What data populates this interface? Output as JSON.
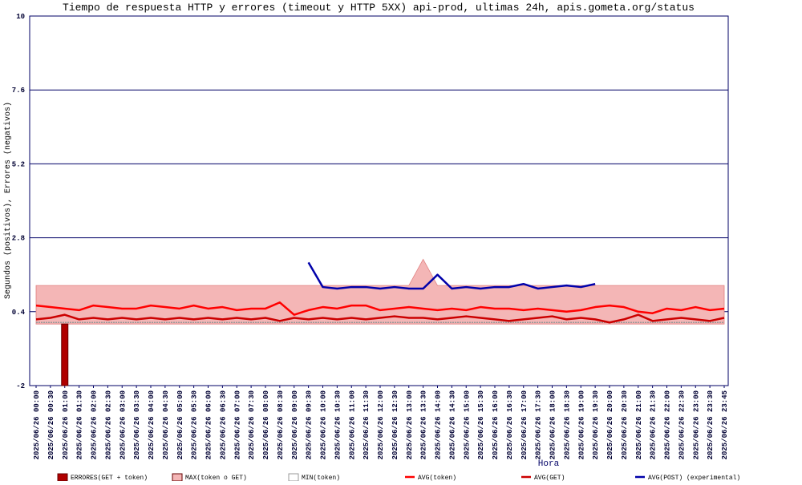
{
  "chart_data": {
    "type": "line",
    "title": "Tiempo de respuesta HTTP y errores (timeout y HTTP 5XX) api-prod, ultimas 24h, apis.gometa.org/status",
    "ylabel": "Segundos (positivos), Errores (negativos)",
    "xlabel": "Hora",
    "categories": [
      "2025/06/26 00:00",
      "2025/06/26 00:30",
      "2025/06/26 01:00",
      "2025/06/26 01:30",
      "2025/06/26 02:00",
      "2025/06/26 02:30",
      "2025/06/26 03:00",
      "2025/06/26 03:30",
      "2025/06/26 04:00",
      "2025/06/26 04:30",
      "2025/06/26 05:00",
      "2025/06/26 05:30",
      "2025/06/26 06:00",
      "2025/06/26 06:30",
      "2025/06/26 07:00",
      "2025/06/26 07:30",
      "2025/06/26 08:00",
      "2025/06/26 08:30",
      "2025/06/26 09:00",
      "2025/06/26 09:30",
      "2025/06/26 10:00",
      "2025/06/26 10:30",
      "2025/06/26 11:00",
      "2025/06/26 11:30",
      "2025/06/26 12:00",
      "2025/06/26 12:30",
      "2025/06/26 13:00",
      "2025/06/26 13:30",
      "2025/06/26 14:00",
      "2025/06/26 14:30",
      "2025/06/26 15:00",
      "2025/06/26 15:30",
      "2025/06/26 16:00",
      "2025/06/26 16:30",
      "2025/06/26 17:00",
      "2025/06/26 17:30",
      "2025/06/26 18:00",
      "2025/06/26 18:30",
      "2025/06/26 19:00",
      "2025/06/26 19:30",
      "2025/06/26 20:00",
      "2025/06/26 20:30",
      "2025/06/26 21:00",
      "2025/06/26 21:30",
      "2025/06/26 22:00",
      "2025/06/26 22:30",
      "2025/06/26 23:00",
      "2025/06/26 23:30",
      "2025/06/26 23:45"
    ],
    "series": [
      {
        "name": "ERRORES(GET + token)",
        "kind": "bar",
        "color": "#b00000",
        "values": [
          0,
          0,
          -2,
          0,
          0,
          0,
          0,
          0,
          0,
          0,
          0,
          0,
          0,
          0,
          0,
          0,
          0,
          0,
          0,
          0,
          0,
          0,
          0,
          0,
          0,
          0,
          0,
          0,
          0,
          0,
          0,
          0,
          0,
          0,
          0,
          0,
          0,
          0,
          0,
          0,
          0,
          0,
          0,
          0,
          0,
          0,
          0,
          0,
          0
        ]
      },
      {
        "name": "MAX(token o GET)",
        "kind": "area",
        "color": "#f4b6b6",
        "values": [
          1.25,
          1.25,
          1.25,
          1.25,
          1.25,
          1.25,
          1.25,
          1.25,
          1.25,
          1.25,
          1.25,
          1.25,
          1.25,
          1.25,
          1.25,
          1.25,
          1.25,
          1.25,
          1.25,
          1.25,
          1.25,
          1.25,
          1.25,
          1.25,
          1.25,
          1.25,
          1.25,
          2.1,
          1.25,
          1.25,
          1.25,
          1.25,
          1.25,
          1.25,
          1.25,
          1.25,
          1.25,
          1.25,
          1.25,
          1.25,
          1.25,
          1.25,
          1.25,
          1.25,
          1.25,
          1.25,
          1.25,
          1.25,
          1.25
        ]
      },
      {
        "name": "MIN(token)",
        "kind": "min",
        "color": "#999999",
        "values": [
          0.05,
          0.05,
          0.05,
          0.05,
          0.05,
          0.05,
          0.05,
          0.05,
          0.05,
          0.05,
          0.05,
          0.05,
          0.05,
          0.05,
          0.05,
          0.05,
          0.05,
          0.05,
          0.05,
          0.05,
          0.05,
          0.05,
          0.05,
          0.05,
          0.05,
          0.05,
          0.05,
          0.05,
          0.05,
          0.05,
          0.05,
          0.05,
          0.05,
          0.05,
          0.05,
          0.05,
          0.05,
          0.05,
          0.05,
          0.05,
          0.05,
          0.05,
          0.05,
          0.05,
          0.05,
          0.05,
          0.05,
          0.05,
          0.05
        ]
      },
      {
        "name": "AVG(token)",
        "kind": "line",
        "color": "#ff0000",
        "values": [
          0.6,
          0.55,
          0.5,
          0.45,
          0.6,
          0.55,
          0.5,
          0.5,
          0.6,
          0.55,
          0.5,
          0.6,
          0.5,
          0.55,
          0.45,
          0.5,
          0.5,
          0.7,
          0.3,
          0.45,
          0.55,
          0.5,
          0.6,
          0.6,
          0.45,
          0.5,
          0.55,
          0.5,
          0.45,
          0.5,
          0.45,
          0.55,
          0.5,
          0.5,
          0.45,
          0.5,
          0.45,
          0.4,
          0.45,
          0.55,
          0.6,
          0.55,
          0.4,
          0.35,
          0.5,
          0.45,
          0.55,
          0.45,
          0.5
        ]
      },
      {
        "name": "AVG(GET)",
        "kind": "line",
        "color": "#cc0000",
        "values": [
          0.15,
          0.2,
          0.3,
          0.15,
          0.2,
          0.15,
          0.2,
          0.15,
          0.2,
          0.15,
          0.2,
          0.15,
          0.2,
          0.15,
          0.2,
          0.15,
          0.2,
          0.1,
          0.2,
          0.15,
          0.2,
          0.15,
          0.2,
          0.15,
          0.2,
          0.25,
          0.2,
          0.2,
          0.15,
          0.2,
          0.25,
          0.2,
          0.15,
          0.1,
          0.15,
          0.2,
          0.25,
          0.15,
          0.2,
          0.15,
          0.05,
          0.15,
          0.3,
          0.1,
          0.15,
          0.2,
          0.15,
          0.1,
          0.2
        ]
      },
      {
        "name": "AVG(POST) (experimental)",
        "kind": "line",
        "color": "#0000aa",
        "values": [
          null,
          null,
          null,
          null,
          null,
          null,
          null,
          null,
          null,
          null,
          null,
          null,
          null,
          null,
          null,
          null,
          null,
          null,
          null,
          2.0,
          1.2,
          1.15,
          1.2,
          1.2,
          1.15,
          1.2,
          1.15,
          1.15,
          1.6,
          1.15,
          1.2,
          1.15,
          1.2,
          1.2,
          1.3,
          1.15,
          1.2,
          1.25,
          1.2,
          1.3,
          null,
          null,
          null,
          null,
          null,
          null,
          null,
          null,
          null
        ]
      }
    ],
    "ylim": [
      -2,
      10
    ],
    "yticks": [
      -2,
      0.4,
      2.8,
      5.2,
      7.6,
      10
    ],
    "grid": true
  }
}
